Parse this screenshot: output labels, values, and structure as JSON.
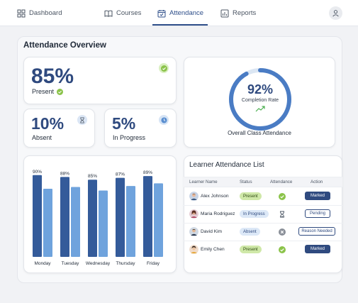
{
  "nav": {
    "items": [
      {
        "label": "Dashboard",
        "icon": "grid-icon"
      },
      {
        "label": "Courses",
        "icon": "book-icon"
      },
      {
        "label": "Attendance",
        "icon": "calendar-check-icon",
        "active": true
      },
      {
        "label": "Reports",
        "icon": "bar-chart-icon"
      }
    ],
    "profile_icon": "user-icon"
  },
  "overview": {
    "title": "Attendance Overview",
    "present": {
      "value": "85%",
      "label": "Present"
    },
    "absent": {
      "value": "10%",
      "label": "Absent"
    },
    "in_progress": {
      "value": "5%",
      "label": "In Progress"
    },
    "completion": {
      "value": "92%",
      "label": "Completion Rate",
      "percent": 92,
      "caption": "Overall Class Attendance"
    }
  },
  "colors": {
    "primary": "#2f4a7f",
    "accent": "#4a7cc4",
    "bar_dark": "#345b9a",
    "bar_light": "#6fa3dd",
    "success": "#8bc34a",
    "badge_green": "#cfe8a8"
  },
  "chart_data": {
    "type": "bar",
    "categories": [
      "Monday",
      "Tuesday",
      "Wednesday",
      "Thursday",
      "Friday"
    ],
    "series": [
      {
        "values": [
          90,
          88,
          85,
          87,
          89
        ]
      },
      {
        "values": [
          75,
          77,
          73,
          78,
          81
        ]
      }
    ],
    "data_labels": [
      "90%",
      "88%",
      "85%",
      "87%",
      "89%"
    ],
    "ylim": [
      0,
      100
    ],
    "grid": false
  },
  "learners": {
    "title": "Learner Attendance List",
    "columns": [
      "Learner Name",
      "Status",
      "Attendance",
      "Action"
    ],
    "rows": [
      {
        "name": "Alex Johnson",
        "status": "Present",
        "attendance": "check-icon",
        "action": "Marked"
      },
      {
        "name": "Maria Rodriguez",
        "status": "In Progress",
        "attendance": "hourglass-icon",
        "action": "Pending"
      },
      {
        "name": "David Kim",
        "status": "Absent",
        "attendance": "x-circle-icon",
        "action": "Reason Needed"
      },
      {
        "name": "Emily Chen",
        "status": "Present",
        "attendance": "check-icon",
        "action": "Marked"
      }
    ]
  }
}
